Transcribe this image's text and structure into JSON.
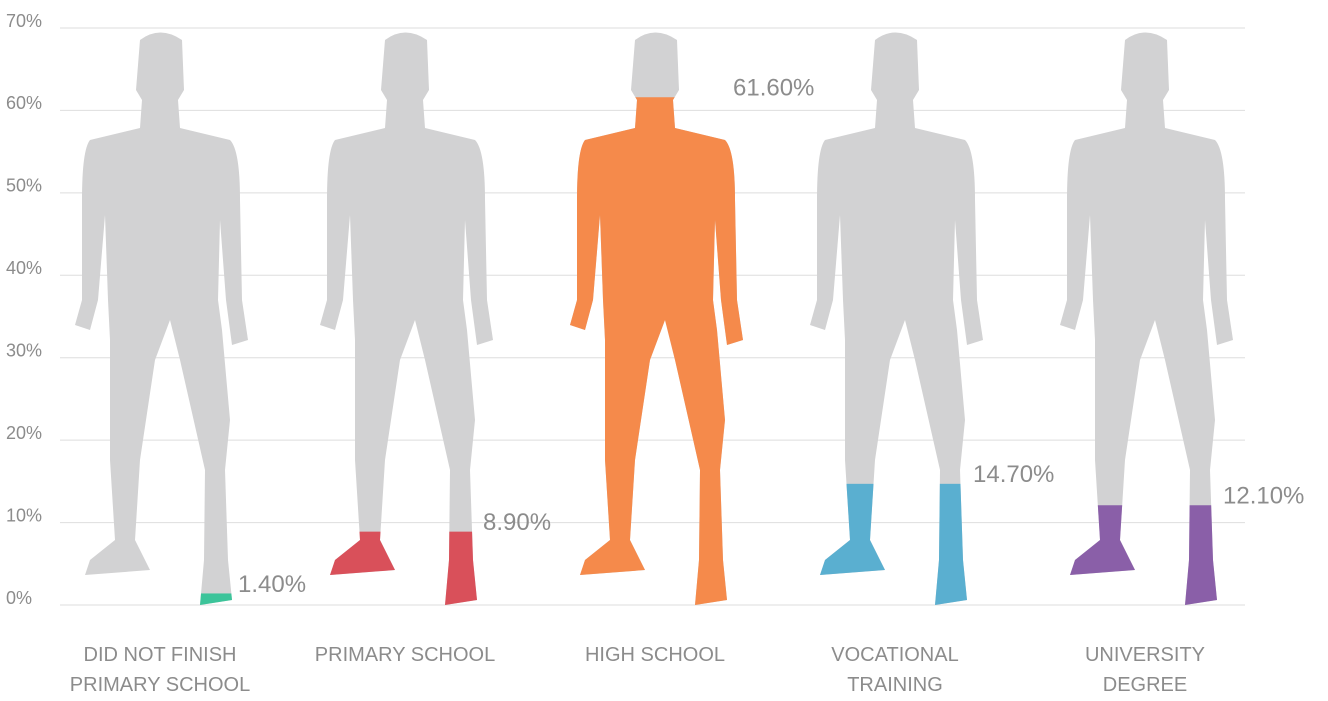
{
  "chart_data": {
    "type": "pictorial-bar",
    "categories": [
      "DID NOT FINISH PRIMARY SCHOOL",
      "PRIMARY SCHOOL",
      "HIGH SCHOOL",
      "VOCATIONAL TRAINING",
      "UNIVERSITY DEGREE"
    ],
    "values": [
      1.4,
      8.9,
      61.6,
      14.7,
      12.1
    ],
    "value_labels": [
      "1.40%",
      "8.90%",
      "61.60%",
      "14.70%",
      "12.10%"
    ],
    "colors": [
      "#3cc49a",
      "#d9505a",
      "#f58a4b",
      "#5aafd0",
      "#8a5fa8"
    ],
    "ylim": [
      0,
      70
    ],
    "yticks": [
      {
        "value": 0,
        "label": "0%"
      },
      {
        "value": 10,
        "label": "10%"
      },
      {
        "value": 20,
        "label": "20%"
      },
      {
        "value": 30,
        "label": "30%"
      },
      {
        "value": 40,
        "label": "40%"
      },
      {
        "value": 50,
        "label": "50%"
      },
      {
        "value": 60,
        "label": "60%"
      },
      {
        "value": 70,
        "label": "70%"
      }
    ],
    "grid": true
  }
}
